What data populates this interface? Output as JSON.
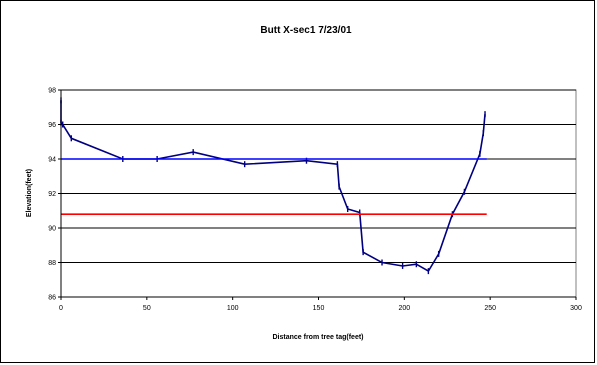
{
  "chart_data": {
    "type": "line",
    "title": "Butt X-sec1 7/23/01",
    "xlabel": "Distance from tree tag(feet)",
    "ylabel": "Elevation(feet)",
    "xlim": [
      0,
      300
    ],
    "ylim": [
      86,
      98
    ],
    "xticks": [
      0,
      50,
      100,
      150,
      200,
      250,
      300
    ],
    "yticks": [
      86,
      88,
      90,
      92,
      94,
      96,
      98
    ],
    "grid": "horizontal",
    "legend": "none",
    "series": [
      {
        "color": "#000080",
        "markers": true,
        "x": [
          0,
          0,
          1,
          6,
          36,
          56,
          77,
          107,
          143,
          161,
          162,
          167,
          174,
          176,
          187,
          199,
          207,
          214,
          220,
          228,
          235,
          244,
          246,
          247
        ],
        "y": [
          97.4,
          96.1,
          96.0,
          95.2,
          94.0,
          94.0,
          94.4,
          93.7,
          93.9,
          93.7,
          92.4,
          91.1,
          90.9,
          88.6,
          88.0,
          87.8,
          87.9,
          87.5,
          88.5,
          90.8,
          92.1,
          94.3,
          95.5,
          96.6
        ]
      },
      {
        "color": "#0000ff",
        "markers": false,
        "x": [
          0,
          248
        ],
        "y": [
          94.0,
          94.0
        ]
      },
      {
        "color": "#ff0000",
        "markers": false,
        "x": [
          0,
          248
        ],
        "y": [
          90.8,
          90.8
        ]
      }
    ]
  }
}
